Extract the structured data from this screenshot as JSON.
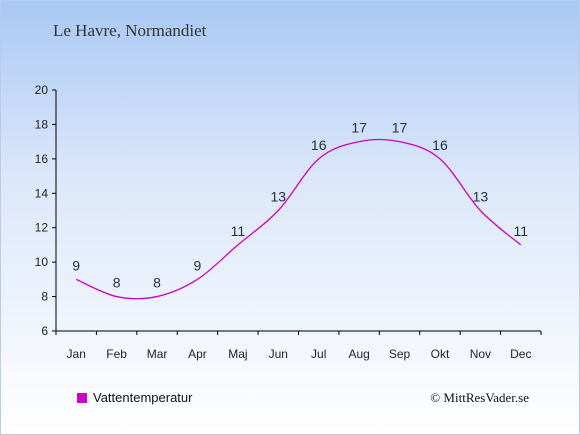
{
  "header": {
    "title": "Le Havre, Normandiet"
  },
  "legend": {
    "label": "Vattentemperatur",
    "color": "#cc00cc"
  },
  "footer": {
    "copyright": "© MittResVader.se"
  },
  "chart_data": {
    "type": "line",
    "categories": [
      "Jan",
      "Feb",
      "Mar",
      "Apr",
      "Maj",
      "Jun",
      "Jul",
      "Aug",
      "Sep",
      "Okt",
      "Nov",
      "Dec"
    ],
    "series": [
      {
        "name": "Vattentemperatur",
        "values": [
          9,
          8,
          8,
          9,
          11,
          13,
          16,
          17,
          17,
          16,
          13,
          11
        ],
        "color": "#cc00cc"
      }
    ],
    "yticks": [
      6,
      8,
      10,
      12,
      14,
      16,
      18,
      20
    ],
    "ylim": [
      6,
      20
    ],
    "grid": false,
    "legend_position": "bottom-left"
  }
}
